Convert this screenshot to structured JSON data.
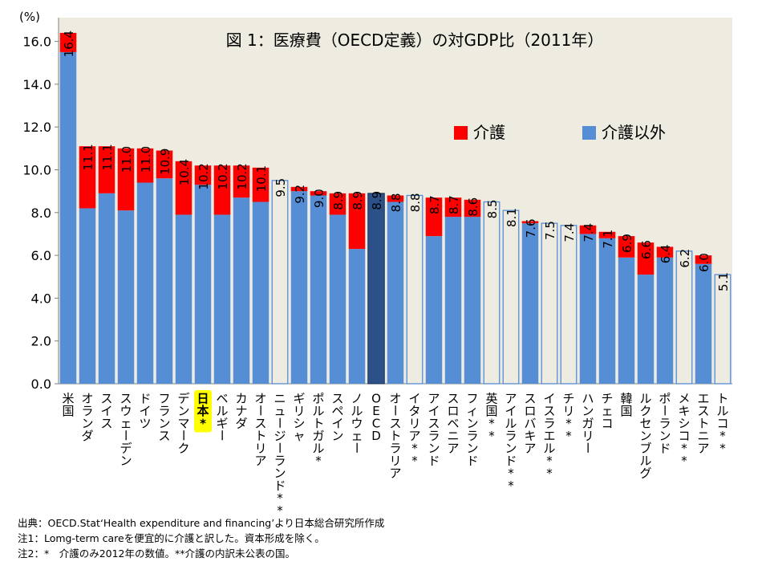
{
  "chart_data": {
    "type": "bar",
    "stacked": true,
    "title": "図 1：医療費（OECD定義）の対GDP比（2011年）",
    "unit_label": "(%)",
    "ylim": [
      0,
      17.0
    ],
    "yticks": [
      0,
      2,
      4,
      6,
      8,
      10,
      12,
      14,
      16
    ],
    "ytick_labels": [
      "0.0",
      "2.0",
      "4.0",
      "6.0",
      "8.0",
      "10.0",
      "12.0",
      "14.0",
      "16.0"
    ],
    "grid": false,
    "legend": [
      {
        "name": "介護",
        "color": "#ff0000"
      },
      {
        "name": "介護以外",
        "color": "#558ed5"
      }
    ],
    "legend_position": "top-right",
    "colors": {
      "nursing": "#ff0000",
      "non_nursing": "#558ed5",
      "oecd": "#2c5189",
      "outline_fill": "#eeece1",
      "outline_stroke": "#558ed5",
      "plot_background": "#eeece1",
      "highlight": "#ffff00"
    },
    "bars": [
      {
        "label": "米国",
        "total": 16.4,
        "total_label": "16.4",
        "non_nursing": 15.5,
        "nursing": 0.9,
        "kind": "stacked"
      },
      {
        "label": "オランダ",
        "total": 11.1,
        "total_label": "11.1",
        "non_nursing": 8.2,
        "nursing": 2.9,
        "kind": "stacked"
      },
      {
        "label": "スイス",
        "total": 11.1,
        "total_label": "11.1",
        "non_nursing": 8.9,
        "nursing": 2.2,
        "kind": "stacked"
      },
      {
        "label": "スウェーデン",
        "total": 11.0,
        "total_label": "11.0",
        "non_nursing": 8.1,
        "nursing": 2.9,
        "kind": "stacked"
      },
      {
        "label": "ドイツ",
        "total": 11.0,
        "total_label": "11.0",
        "non_nursing": 9.4,
        "nursing": 1.6,
        "kind": "stacked"
      },
      {
        "label": "フランス",
        "total": 10.9,
        "total_label": "10.9",
        "non_nursing": 9.6,
        "nursing": 1.3,
        "kind": "stacked"
      },
      {
        "label": "デンマーク",
        "total": 10.4,
        "total_label": "10.4",
        "non_nursing": 7.9,
        "nursing": 2.5,
        "kind": "stacked"
      },
      {
        "label": "日本*",
        "total": 10.2,
        "total_label": "10.2",
        "non_nursing": 9.3,
        "nursing": 0.9,
        "kind": "stacked",
        "highlight": true
      },
      {
        "label": "ベルギー",
        "total": 10.2,
        "total_label": "10.2",
        "non_nursing": 7.9,
        "nursing": 2.3,
        "kind": "stacked"
      },
      {
        "label": "カナダ",
        "total": 10.2,
        "total_label": "10.2",
        "non_nursing": 8.7,
        "nursing": 1.5,
        "kind": "stacked"
      },
      {
        "label": "オーストリア",
        "total": 10.1,
        "total_label": "10.1",
        "non_nursing": 8.5,
        "nursing": 1.6,
        "kind": "stacked"
      },
      {
        "label": "ニュージーランド**",
        "total": 9.5,
        "total_label": "9.5",
        "kind": "outline"
      },
      {
        "label": "ギリシャ",
        "total": 9.2,
        "total_label": "9.2",
        "non_nursing": 9.0,
        "nursing": 0.2,
        "kind": "stacked"
      },
      {
        "label": "ポルトガル*",
        "total": 9.0,
        "total_label": "9.0",
        "non_nursing": 8.8,
        "nursing": 0.2,
        "kind": "stacked"
      },
      {
        "label": "スペイン",
        "total": 8.9,
        "total_label": "8.9",
        "non_nursing": 7.9,
        "nursing": 1.0,
        "kind": "stacked"
      },
      {
        "label": "ノルウェー",
        "total": 8.9,
        "total_label": "8.9",
        "non_nursing": 6.3,
        "nursing": 2.6,
        "kind": "stacked"
      },
      {
        "label": "OECD",
        "total": 8.9,
        "total_label": "8.9",
        "kind": "oecd"
      },
      {
        "label": "オーストラリア",
        "total": 8.8,
        "total_label": "8.8",
        "non_nursing": 8.5,
        "nursing": 0.3,
        "kind": "stacked"
      },
      {
        "label": "イタリア**",
        "total": 8.8,
        "total_label": "8.8",
        "kind": "outline"
      },
      {
        "label": "アイスランド",
        "total": 8.7,
        "total_label": "8.7",
        "non_nursing": 6.9,
        "nursing": 1.8,
        "kind": "stacked"
      },
      {
        "label": "スロベニア",
        "total": 8.7,
        "total_label": "8.7",
        "non_nursing": 7.8,
        "nursing": 0.9,
        "kind": "stacked"
      },
      {
        "label": "フィンランド",
        "total": 8.6,
        "total_label": "8.6",
        "non_nursing": 7.8,
        "nursing": 0.8,
        "kind": "stacked"
      },
      {
        "label": "英国**",
        "total": 8.5,
        "total_label": "8.5",
        "kind": "outline"
      },
      {
        "label": "アイルランド**",
        "total": 8.1,
        "total_label": "8.1",
        "kind": "outline"
      },
      {
        "label": "スロバキア",
        "total": 7.6,
        "total_label": "7.6",
        "non_nursing": 7.5,
        "nursing": 0.1,
        "kind": "stacked"
      },
      {
        "label": "イスラエル**",
        "total": 7.5,
        "total_label": "7.5",
        "kind": "outline"
      },
      {
        "label": "チリ**",
        "total": 7.4,
        "total_label": "7.4",
        "kind": "outline"
      },
      {
        "label": "ハンガリー",
        "total": 7.4,
        "total_label": "7.4",
        "non_nursing": 7.0,
        "nursing": 0.4,
        "kind": "stacked"
      },
      {
        "label": "チェコ",
        "total": 7.1,
        "total_label": "7.1",
        "non_nursing": 6.8,
        "nursing": 0.3,
        "kind": "stacked"
      },
      {
        "label": "韓国",
        "total": 6.9,
        "total_label": "6.9",
        "non_nursing": 5.9,
        "nursing": 1.0,
        "kind": "stacked"
      },
      {
        "label": "ルクセンブルグ",
        "total": 6.6,
        "total_label": "6.6",
        "non_nursing": 5.1,
        "nursing": 1.5,
        "kind": "stacked"
      },
      {
        "label": "ポーランド",
        "total": 6.4,
        "total_label": "6.4",
        "non_nursing": 5.9,
        "nursing": 0.5,
        "kind": "stacked"
      },
      {
        "label": "メキシコ**",
        "total": 6.2,
        "total_label": "6.2",
        "kind": "outline"
      },
      {
        "label": "エストニア",
        "total": 6.0,
        "total_label": "6.0",
        "non_nursing": 5.6,
        "nursing": 0.4,
        "kind": "stacked"
      },
      {
        "label": "トルコ**",
        "total": 5.1,
        "total_label": "5.1",
        "kind": "outline"
      }
    ]
  },
  "footnotes": [
    "出典：OECD.Stat‘Health expenditure and financing’より日本総合研究所作成",
    "注1：Lomg-term careを便宜的に介護と訳した。資本形成を除く。",
    "注2：*　介護のみ2012年の数値。**介護の内訳未公表の国。"
  ]
}
